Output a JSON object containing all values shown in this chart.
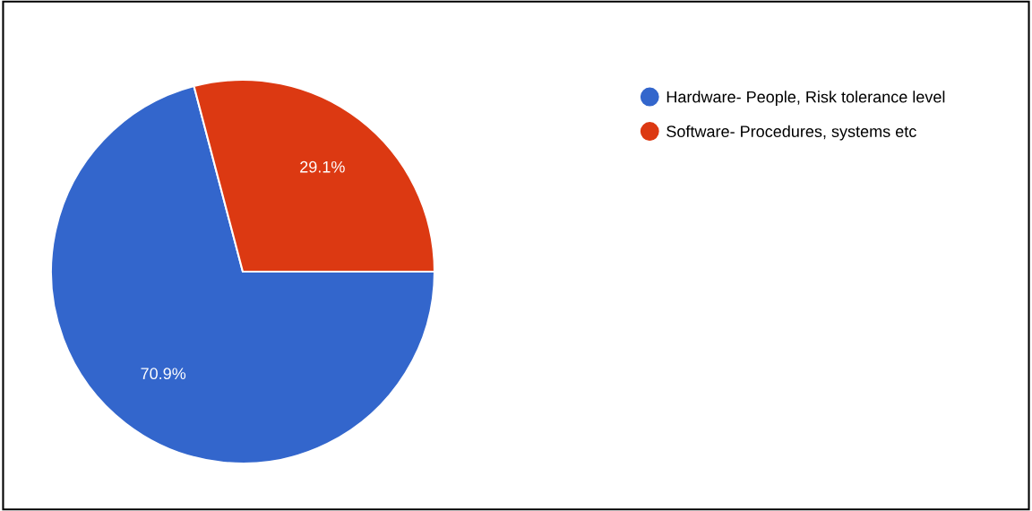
{
  "chart_data": {
    "type": "pie",
    "categories": [
      "Hardware- People, Risk tolerance level",
      "Software- Procedures, systems etc"
    ],
    "values": [
      70.9,
      29.1
    ],
    "colors": [
      "#3366cc",
      "#dc3912"
    ],
    "value_labels": [
      "70.9%",
      "29.1%"
    ],
    "legend": "top right"
  }
}
